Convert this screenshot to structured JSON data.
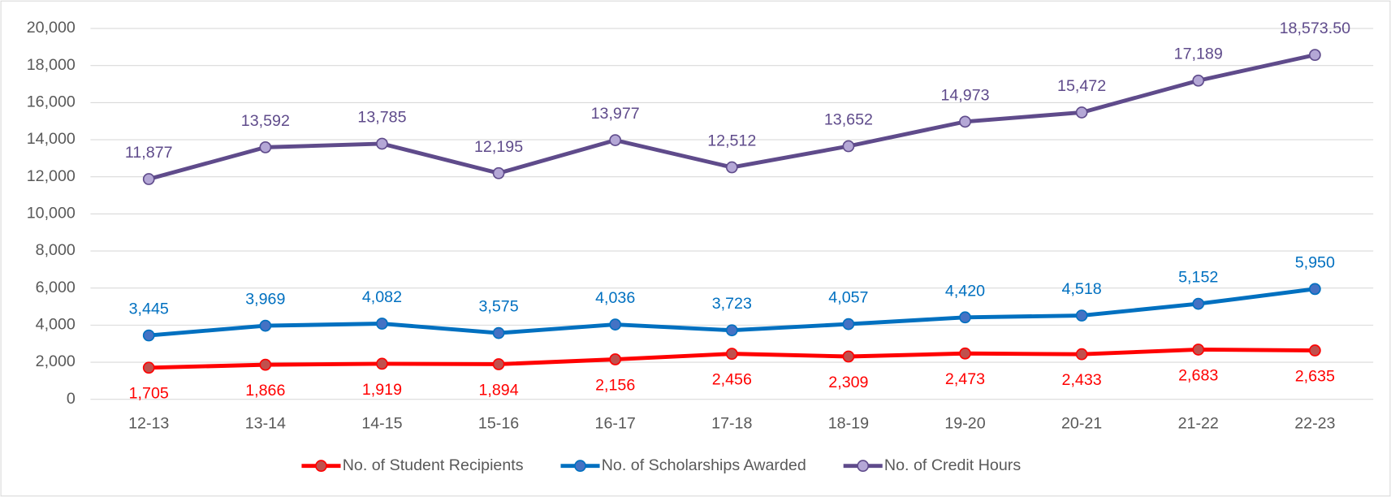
{
  "chart_data": {
    "type": "line",
    "categories": [
      "12-13",
      "13-14",
      "14-15",
      "15-16",
      "16-17",
      "17-18",
      "18-19",
      "19-20",
      "20-21",
      "21-22",
      "22-23"
    ],
    "series": [
      {
        "name": "No. of Student Recipients",
        "color": "#ff0000",
        "marker_color": "#c0504d",
        "values": [
          1705,
          1866,
          1919,
          1894,
          2156,
          2456,
          2309,
          2473,
          2433,
          2683,
          2635
        ],
        "value_labels": [
          "1,705",
          "1,866",
          "1,919",
          "1,894",
          "2,156",
          "2,456",
          "2,309",
          "2,473",
          "2,433",
          "2,683",
          "2,635"
        ]
      },
      {
        "name": "No. of Scholarships Awarded",
        "color": "#0070c0",
        "marker_color": "#4472c4",
        "values": [
          3445,
          3969,
          4082,
          3575,
          4036,
          3723,
          4057,
          4420,
          4518,
          5152,
          5950
        ],
        "value_labels": [
          "3,445",
          "3,969",
          "4,082",
          "3,575",
          "4,036",
          "3,723",
          "4,057",
          "4,420",
          "4,518",
          "5,152",
          "5,950"
        ]
      },
      {
        "name": "No. of Credit Hours",
        "color": "#5f4b8b",
        "marker_color": "#b4a7d6",
        "values": [
          11877,
          13592,
          13785,
          12195,
          13977,
          12512,
          13652,
          14973,
          15472,
          17189,
          18573.5
        ],
        "value_labels": [
          "11,877",
          "13,592",
          "13,785",
          "12,195",
          "13,977",
          "12,512",
          "13,652",
          "14,973",
          "15,472",
          "17,189",
          "18,573.50"
        ]
      }
    ],
    "ylim": [
      0,
      20000
    ],
    "yticks": [
      0,
      {
        "value": 2000,
        "label": "2,000"
      },
      {
        "value": 4000,
        "label": "4,000"
      },
      {
        "value": 6000,
        "label": "6,000"
      },
      {
        "value": 8000,
        "label": "8,000"
      },
      {
        "value": 10000,
        "label": "10,000"
      },
      {
        "value": 12000,
        "label": "12,000"
      },
      {
        "value": 14000,
        "label": "14,000"
      },
      {
        "value": 16000,
        "label": "16,000"
      },
      {
        "value": 18000,
        "label": "18,000"
      },
      {
        "value": 20000,
        "label": "20,000"
      }
    ],
    "grid": true,
    "legend": "bottom"
  }
}
